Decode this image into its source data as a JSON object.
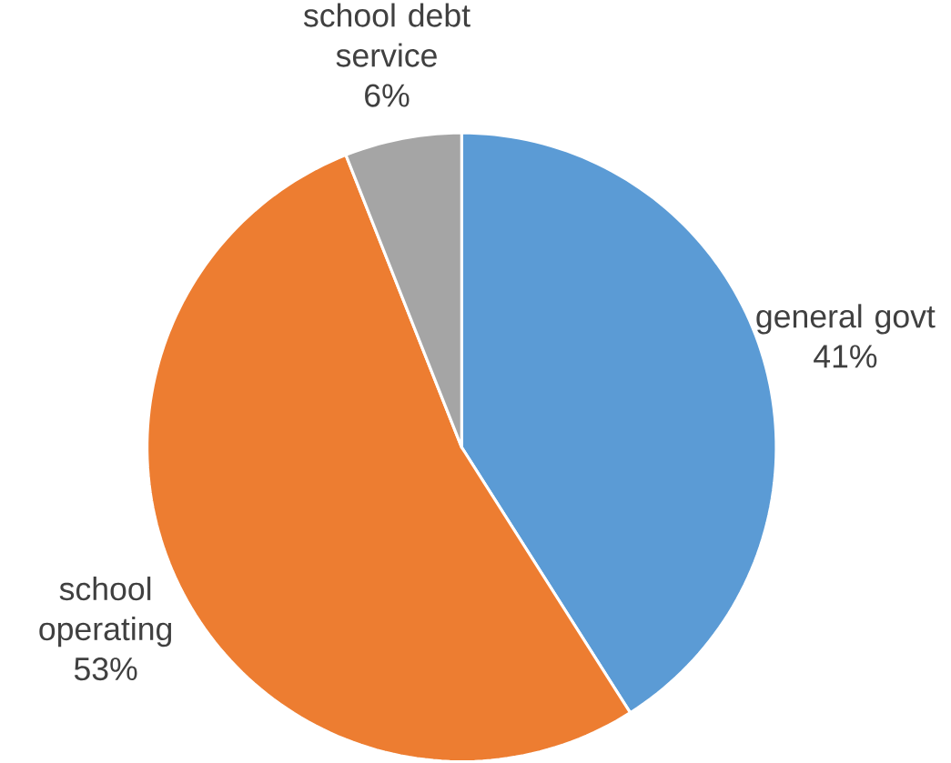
{
  "chart_data": {
    "type": "pie",
    "categories": [
      "general govt",
      "school operating",
      "school debt service"
    ],
    "values": [
      41,
      53,
      6
    ],
    "value_labels": [
      "41%",
      "53%",
      "6%"
    ],
    "colors": [
      "#5b9bd5",
      "#ed7d31",
      "#a5a5a5"
    ]
  }
}
